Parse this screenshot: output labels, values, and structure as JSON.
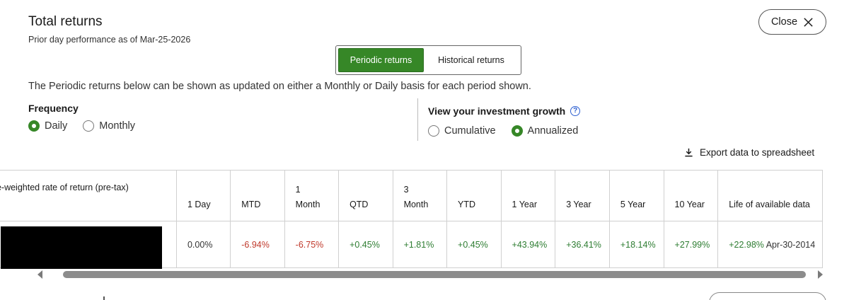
{
  "header": {
    "title": "Total returns",
    "subtitle": "Prior day performance as of Mar-25-2026",
    "close_label": "Close"
  },
  "view_toggle": {
    "active_label": "Periodic returns",
    "inactive_label": "Historical returns"
  },
  "description": "The Periodic returns below can be shown as updated on either a Monthly or Daily basis for each period shown.",
  "frequency": {
    "label": "Frequency",
    "options": [
      "Daily",
      "Monthly"
    ],
    "selected": "Daily"
  },
  "growth": {
    "label": "View your investment growth",
    "help_glyph": "?",
    "options": [
      "Cumulative",
      "Annualized"
    ],
    "selected": "Annualized"
  },
  "export_label": "Export data to spreadsheet",
  "table": {
    "first_header": "ne-weighted rate of return (pre-tax)",
    "columns": [
      {
        "line1": "",
        "line2": "1 Day"
      },
      {
        "line1": "",
        "line2": "MTD"
      },
      {
        "line1": "1",
        "line2": "Month"
      },
      {
        "line1": "",
        "line2": "QTD"
      },
      {
        "line1": "3",
        "line2": "Month"
      },
      {
        "line1": "",
        "line2": "YTD"
      },
      {
        "line1": "",
        "line2": "1 Year"
      },
      {
        "line1": "",
        "line2": "3 Year"
      },
      {
        "line1": "",
        "line2": "5 Year"
      },
      {
        "line1": "",
        "line2": "10 Year"
      },
      {
        "line1": "",
        "line2": "Life of available data"
      }
    ],
    "row": {
      "values": [
        "0.00%",
        "-6.94%",
        "-6.75%",
        "+0.45%",
        "+1.81%",
        "+0.45%",
        "+43.94%",
        "+36.41%",
        "+18.14%",
        "+27.99%",
        "+22.98%"
      ],
      "life_date": "Apr-30-2014"
    }
  },
  "colors": {
    "accent_green": "#368727",
    "negative": "#c0392b",
    "positive": "#2e7d32",
    "help_blue": "#2c5fd1"
  }
}
